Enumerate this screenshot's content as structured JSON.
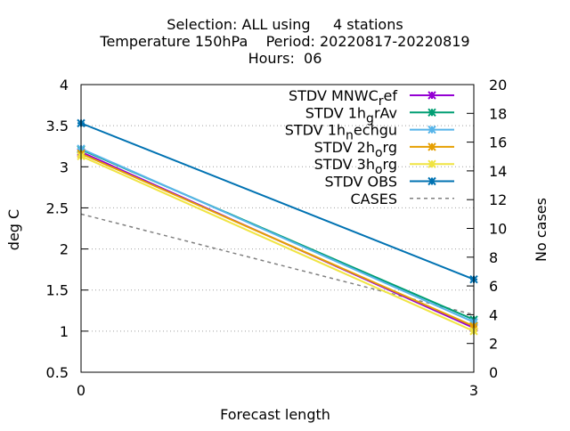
{
  "chart_data": {
    "type": "line",
    "title": [
      "Selection: ALL using     4 stations",
      "Temperature 150hPa    Period: 20220817-20220819",
      "Hours:  06"
    ],
    "xlabel": "Forecast length",
    "ylabel": "deg C",
    "y2label": "No cases",
    "x": [
      0,
      3
    ],
    "xlim": [
      0,
      3
    ],
    "xticks": [
      "0",
      "3"
    ],
    "ylim": [
      0.5,
      4
    ],
    "yticks": [
      "0.5",
      "1",
      "1.5",
      "2",
      "2.5",
      "3",
      "3.5",
      "4"
    ],
    "y2lim": [
      0,
      20
    ],
    "y2ticks": [
      "0",
      "2",
      "4",
      "6",
      "8",
      "10",
      "12",
      "14",
      "16",
      "18",
      "20"
    ],
    "grid": true,
    "legend_position": "top-right",
    "series": [
      {
        "name": "STDV MNWC_ref",
        "label_main": "STDV MNWC",
        "label_sub": "r",
        "label_rest": "ef",
        "color": "#9400d3",
        "values": [
          3.18,
          1.04
        ],
        "axis": "y1",
        "style": "solid"
      },
      {
        "name": "STDV 1h_grAv",
        "label_main": "STDV 1h",
        "label_sub": "g",
        "label_rest": "rAv",
        "color": "#009e73",
        "values": [
          3.21,
          1.14
        ],
        "axis": "y1",
        "style": "solid"
      },
      {
        "name": "STDV 1h_nechgu",
        "label_main": "STDV 1h",
        "label_sub": "n",
        "label_rest": "echgu",
        "color": "#56b4e9",
        "values": [
          3.22,
          1.11
        ],
        "axis": "y1",
        "style": "solid"
      },
      {
        "name": "STDV 2h_org",
        "label_main": "STDV 2h",
        "label_sub": "o",
        "label_rest": "rg",
        "color": "#e69f00",
        "values": [
          3.16,
          1.06
        ],
        "axis": "y1",
        "style": "solid"
      },
      {
        "name": "STDV 3h_org",
        "label_main": "STDV 3h",
        "label_sub": "o",
        "label_rest": "rg",
        "color": "#f0e442",
        "values": [
          3.13,
          1.0
        ],
        "axis": "y1",
        "style": "solid"
      },
      {
        "name": "STDV OBS",
        "label_main": "STDV OBS",
        "label_sub": "",
        "label_rest": "",
        "color": "#0072b2",
        "values": [
          3.53,
          1.63
        ],
        "axis": "y1",
        "style": "solid"
      },
      {
        "name": "CASES",
        "label_main": "CASES",
        "label_sub": "",
        "label_rest": "",
        "color": "#808080",
        "values": [
          11,
          4
        ],
        "axis": "y2",
        "style": "dashed"
      }
    ]
  }
}
